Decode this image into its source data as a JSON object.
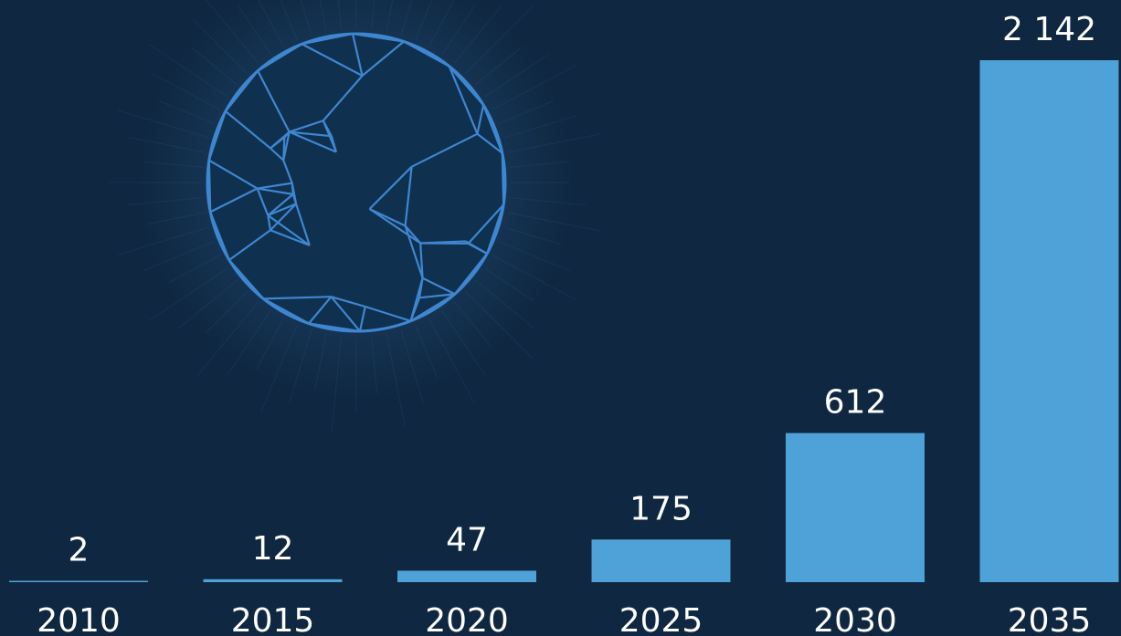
{
  "colors": {
    "background": "#0f2740",
    "bar": "#4ea2d8",
    "globe": "#3f86d0",
    "text": "#ffffff"
  },
  "chart_data": {
    "type": "bar",
    "categories": [
      "2010",
      "2015",
      "2020",
      "2025",
      "2030",
      "2035"
    ],
    "values": [
      2,
      12,
      47,
      175,
      612,
      2142
    ],
    "value_labels": [
      "2",
      "12",
      "47",
      "175",
      "612",
      "2 142"
    ],
    "title": "",
    "xlabel": "",
    "ylabel": "",
    "ylim": [
      0,
      2142
    ],
    "grid": false,
    "legend": "none"
  }
}
